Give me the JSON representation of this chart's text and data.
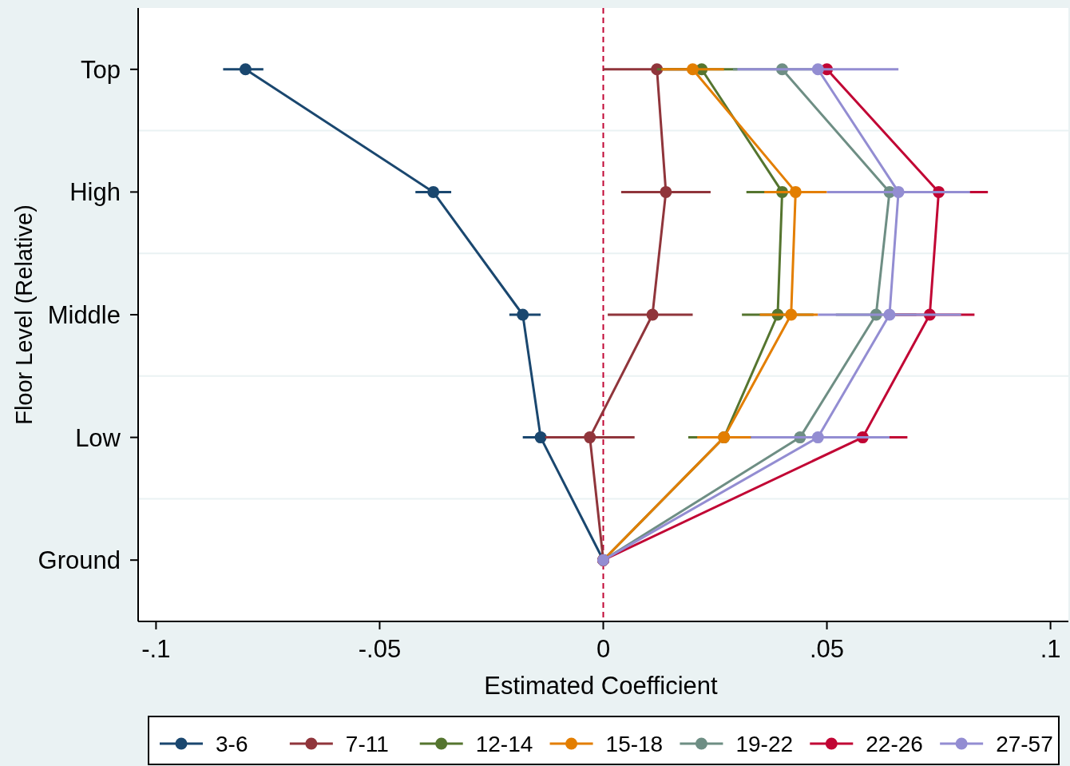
{
  "chart_data": {
    "type": "line",
    "orientation": "horizontal",
    "xlabel": "Estimated Coefficient",
    "ylabel": "Floor Level (Relative)",
    "categories": [
      "Top",
      "High",
      "Middle",
      "Low",
      "Ground"
    ],
    "xlim": [
      -0.104,
      0.104
    ],
    "xticks": [
      {
        "value": -0.1,
        "label": "-.1"
      },
      {
        "value": -0.05,
        "label": "-.05"
      },
      0,
      {
        "value": 0.05,
        "label": ".05"
      },
      {
        "value": 0.1,
        "label": ".1"
      }
    ],
    "grid": "y",
    "legend": "bottom",
    "marker": "circle",
    "line_style": "solid",
    "ref_lines": [
      {
        "axis": "x",
        "value": 0,
        "color": "#c10534",
        "line_style": "dashed"
      }
    ],
    "series": [
      {
        "name": "3-6",
        "color": "#1a476f",
        "values": [
          -0.08,
          -0.038,
          -0.018,
          -0.014,
          0
        ],
        "errors": [
          [
            -0.085,
            -0.076
          ],
          [
            -0.042,
            -0.034
          ],
          [
            -0.021,
            -0.014
          ],
          [
            -0.018,
            -0.01
          ],
          null
        ]
      },
      {
        "name": "7-11",
        "color": "#90353b",
        "values": [
          0.012,
          0.014,
          0.011,
          -0.003,
          0
        ],
        "errors": [
          [
            0.0,
            0.023
          ],
          [
            0.004,
            0.024
          ],
          [
            0.001,
            0.02
          ],
          [
            -0.013,
            0.007
          ],
          null
        ]
      },
      {
        "name": "12-14",
        "color": "#55752f",
        "values": [
          0.022,
          0.04,
          0.039,
          0.027,
          0
        ],
        "errors": [
          [
            0.012,
            0.03
          ],
          [
            0.032,
            0.048
          ],
          [
            0.031,
            0.047
          ],
          [
            0.019,
            0.035
          ],
          null
        ]
      },
      {
        "name": "15-18",
        "color": "#e37e00",
        "values": [
          0.02,
          0.043,
          0.042,
          0.027,
          0
        ],
        "errors": [
          [
            0.013,
            0.027
          ],
          [
            0.036,
            0.05
          ],
          [
            0.035,
            0.048
          ],
          [
            0.021,
            0.033
          ],
          null
        ]
      },
      {
        "name": "19-22",
        "color": "#6e8e84",
        "values": [
          0.04,
          0.064,
          0.061,
          0.044,
          0
        ],
        "errors": [
          [
            0.029,
            0.051
          ],
          null,
          [
            0.052,
            0.07
          ],
          null,
          null
        ]
      },
      {
        "name": "22-26",
        "color": "#c10534",
        "values": [
          0.05,
          0.075,
          0.073,
          0.058,
          0
        ],
        "errors": [
          null,
          [
            0.065,
            0.086
          ],
          [
            0.063,
            0.083
          ],
          [
            0.049,
            0.068
          ],
          null
        ]
      },
      {
        "name": "27-57",
        "color": "#938dd2",
        "values": [
          0.048,
          0.066,
          0.064,
          0.048,
          0
        ],
        "errors": [
          [
            0.03,
            0.066
          ],
          [
            0.05,
            0.082
          ],
          [
            0.048,
            0.08
          ],
          [
            0.033,
            0.064
          ],
          null
        ]
      }
    ]
  }
}
